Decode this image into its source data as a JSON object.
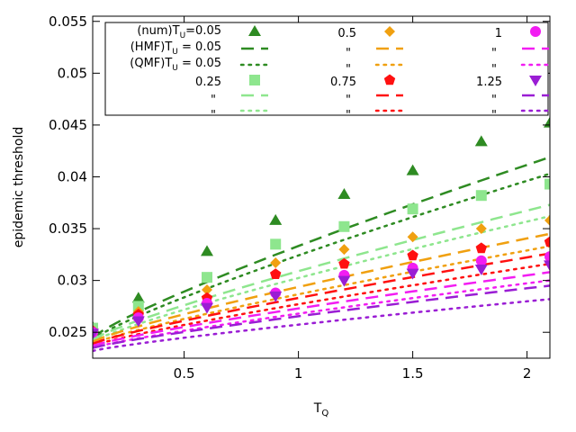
{
  "chart_data": {
    "type": "scatter",
    "xlabel_main": "T",
    "xlabel_sub": "Q",
    "ylabel": "epidemic threshold",
    "xlim": [
      0.1,
      2.1
    ],
    "ylim": [
      0.0225,
      0.0555
    ],
    "x_ticks": [
      0.5,
      1,
      1.5,
      2
    ],
    "x_tick_labels": [
      "0.5",
      "1",
      "1.5",
      "2"
    ],
    "y_ticks": [
      0.025,
      0.03,
      0.035,
      0.04,
      0.045,
      0.05,
      0.055
    ],
    "y_tick_labels": [
      "0.025",
      "0.03",
      "0.035",
      "0.04",
      "0.045",
      "0.05",
      "0.055"
    ],
    "x": [
      0.1,
      0.3,
      0.6,
      0.9,
      1.2,
      1.5,
      1.8,
      2.1
    ],
    "series": [
      {
        "tu": "0.05",
        "color": "#2e8b22",
        "marker": "triangle-up",
        "lite": "#2e8b22",
        "values": [
          0.0255,
          0.0283,
          0.0328,
          0.0358,
          0.0383,
          0.0406,
          0.0434,
          0.0452
        ],
        "hmf": [
          0.0245,
          0.0419
        ],
        "qmf": [
          0.0243,
          0.0403
        ]
      },
      {
        "tu": "0.25",
        "color": "#8ee68e",
        "marker": "square",
        "lite": "#8ee68e",
        "values": [
          0.0254,
          0.0275,
          0.0303,
          0.0335,
          0.0352,
          0.0369,
          0.0382,
          0.0393
        ],
        "hmf": [
          0.0243,
          0.0373
        ],
        "qmf": [
          0.0241,
          0.0362
        ]
      },
      {
        "tu": "0.5",
        "color": "#f0a010",
        "marker": "diamond",
        "lite": "#f0a010",
        "values": [
          0.0252,
          0.027,
          0.0291,
          0.0317,
          0.033,
          0.0342,
          0.035,
          0.0358
        ],
        "hmf": [
          0.0241,
          0.0345
        ],
        "qmf": [
          0.0239,
          0.0333
        ]
      },
      {
        "tu": "0.75",
        "color": "#ff1010",
        "marker": "pentagon",
        "lite": "#ff1010",
        "values": [
          0.0251,
          0.0267,
          0.0283,
          0.0306,
          0.0316,
          0.0324,
          0.0331,
          0.0337
        ],
        "hmf": [
          0.0239,
          0.0326
        ],
        "qmf": [
          0.0237,
          0.0316
        ]
      },
      {
        "tu": "1",
        "color": "#f21df2",
        "marker": "circle",
        "lite": "#f21df2",
        "values": [
          0.025,
          0.0264,
          0.0278,
          0.0288,
          0.0305,
          0.0312,
          0.0319,
          0.0323
        ],
        "hmf": [
          0.0237,
          0.0308
        ],
        "qmf": [
          0.0235,
          0.03
        ]
      },
      {
        "tu": "1.25",
        "color": "#9a1dd4",
        "marker": "triangle-down",
        "lite": "#9a1dd4",
        "values": [
          0.0249,
          0.0261,
          0.0274,
          0.0285,
          0.03,
          0.0307,
          0.0311,
          0.0315
        ],
        "hmf": [
          0.0235,
          0.0295
        ],
        "qmf": [
          0.0232,
          0.0282
        ]
      }
    ],
    "legend": {
      "placement": "top-left",
      "num_label": "(num)T",
      "num_sub": "U",
      "num_eq": "=0.05",
      "hmf_label": "(HMF)T",
      "hmf_sub": "U",
      "hmf_eq": " = 0.05",
      "qmf_label": "(QMF)T",
      "qmf_sub": "U",
      "qmf_eq": " = 0.05",
      "ditto": "\"",
      "row_labels": [
        "0.25",
        "0.5",
        "0.75",
        "1",
        "1.25"
      ]
    }
  }
}
